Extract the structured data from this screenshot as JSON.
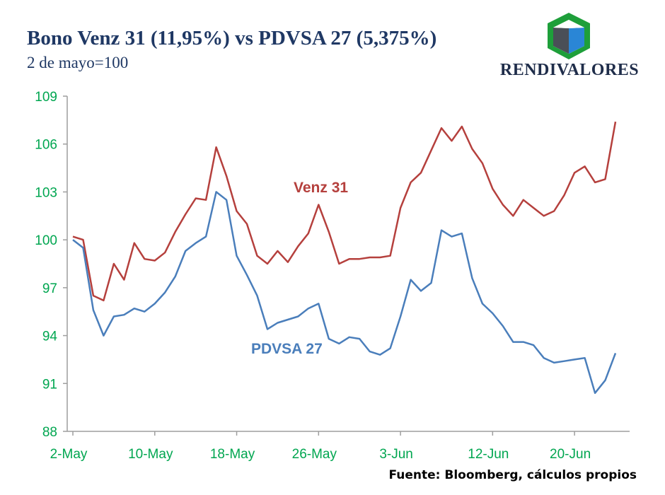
{
  "header": {
    "title": "Bono Venz 31 (11,95%) vs PDVSA 27 (5,375%)",
    "subtitle": "2 de mayo=100"
  },
  "logo": {
    "text": "RENDIVALORES",
    "icon": "cube-logo-icon",
    "colors": {
      "green": "#1e9f3a",
      "blue": "#2a86d6",
      "dark": "#4a4f57"
    }
  },
  "source": "Fuente: Bloomberg, cálculos propios",
  "chart_data": {
    "type": "line",
    "x_start": "2-May",
    "x_end": "24-Jun",
    "ylim": [
      88,
      109
    ],
    "yticks": [
      88,
      91,
      94,
      97,
      100,
      103,
      106,
      109
    ],
    "xtick_labels": [
      "2-May",
      "10-May",
      "18-May",
      "26-May",
      "3-Jun",
      "12-Jun",
      "20-Jun"
    ],
    "series": [
      {
        "name": "Venz 31",
        "color": "#b5403d",
        "x": [
          "2-May",
          "3-May",
          "4-May",
          "5-May",
          "6-May",
          "7-May",
          "8-May",
          "9-May",
          "10-May",
          "11-May",
          "12-May",
          "13-May",
          "14-May",
          "15-May",
          "16-May",
          "17-May",
          "18-May",
          "19-May",
          "20-May",
          "21-May",
          "22-May",
          "23-May",
          "24-May",
          "25-May",
          "26-May",
          "27-May",
          "28-May",
          "29-May",
          "30-May",
          "31-May",
          "1-Jun",
          "2-Jun",
          "3-Jun",
          "4-Jun",
          "5-Jun",
          "6-Jun",
          "7-Jun",
          "8-Jun",
          "9-Jun",
          "10-Jun",
          "11-Jun",
          "12-Jun",
          "13-Jun",
          "14-Jun",
          "15-Jun",
          "16-Jun",
          "17-Jun",
          "18-Jun",
          "19-Jun",
          "20-Jun",
          "21-Jun",
          "22-Jun",
          "23-Jun",
          "24-Jun"
        ],
        "values": [
          100.2,
          100.0,
          96.5,
          96.2,
          98.5,
          97.5,
          99.8,
          98.8,
          98.7,
          99.2,
          100.5,
          101.6,
          102.6,
          102.5,
          105.8,
          104.0,
          101.8,
          101.0,
          99.0,
          98.5,
          99.3,
          98.6,
          99.6,
          100.4,
          102.2,
          100.5,
          98.5,
          98.8,
          98.8,
          98.9,
          98.9,
          99.0,
          102.0,
          103.6,
          104.2,
          105.6,
          107.0,
          106.2,
          107.1,
          105.7,
          104.8,
          103.2,
          102.2,
          101.5,
          102.5,
          102.0,
          101.5,
          101.8,
          102.8,
          104.2,
          104.6,
          103.6,
          103.8,
          107.4
        ]
      },
      {
        "name": "PDVSA 27",
        "color": "#4a7ebb",
        "x": [
          "2-May",
          "3-May",
          "4-May",
          "5-May",
          "6-May",
          "7-May",
          "8-May",
          "9-May",
          "10-May",
          "11-May",
          "12-May",
          "13-May",
          "14-May",
          "15-May",
          "16-May",
          "17-May",
          "18-May",
          "19-May",
          "20-May",
          "21-May",
          "22-May",
          "23-May",
          "24-May",
          "25-May",
          "26-May",
          "27-May",
          "28-May",
          "29-May",
          "30-May",
          "31-May",
          "1-Jun",
          "2-Jun",
          "3-Jun",
          "4-Jun",
          "5-Jun",
          "6-Jun",
          "7-Jun",
          "8-Jun",
          "9-Jun",
          "10-Jun",
          "11-Jun",
          "12-Jun",
          "13-Jun",
          "14-Jun",
          "15-Jun",
          "16-Jun",
          "17-Jun",
          "18-Jun",
          "19-Jun",
          "20-Jun",
          "21-Jun",
          "22-Jun",
          "23-Jun",
          "24-Jun"
        ],
        "values": [
          100.0,
          99.5,
          95.6,
          94.0,
          95.2,
          95.3,
          95.7,
          95.5,
          96.0,
          96.7,
          97.7,
          99.3,
          99.8,
          100.2,
          103.0,
          102.5,
          99.0,
          97.8,
          96.5,
          94.4,
          94.8,
          95.0,
          95.2,
          95.7,
          96.0,
          93.8,
          93.5,
          93.9,
          93.8,
          93.0,
          92.8,
          93.2,
          95.2,
          97.5,
          96.8,
          97.3,
          100.6,
          100.2,
          100.4,
          97.6,
          96.0,
          95.4,
          94.6,
          93.6,
          93.6,
          93.4,
          92.6,
          92.3,
          92.4,
          92.5,
          92.6,
          90.4,
          91.2,
          92.9
        ]
      }
    ],
    "labels": [
      {
        "text": "Venz 31",
        "series": "Venz 31"
      },
      {
        "text": "PDVSA 27",
        "series": "PDVSA 27"
      }
    ],
    "axis_color": "#9e9e9e",
    "tick_color": "#00a650",
    "grid": false
  }
}
